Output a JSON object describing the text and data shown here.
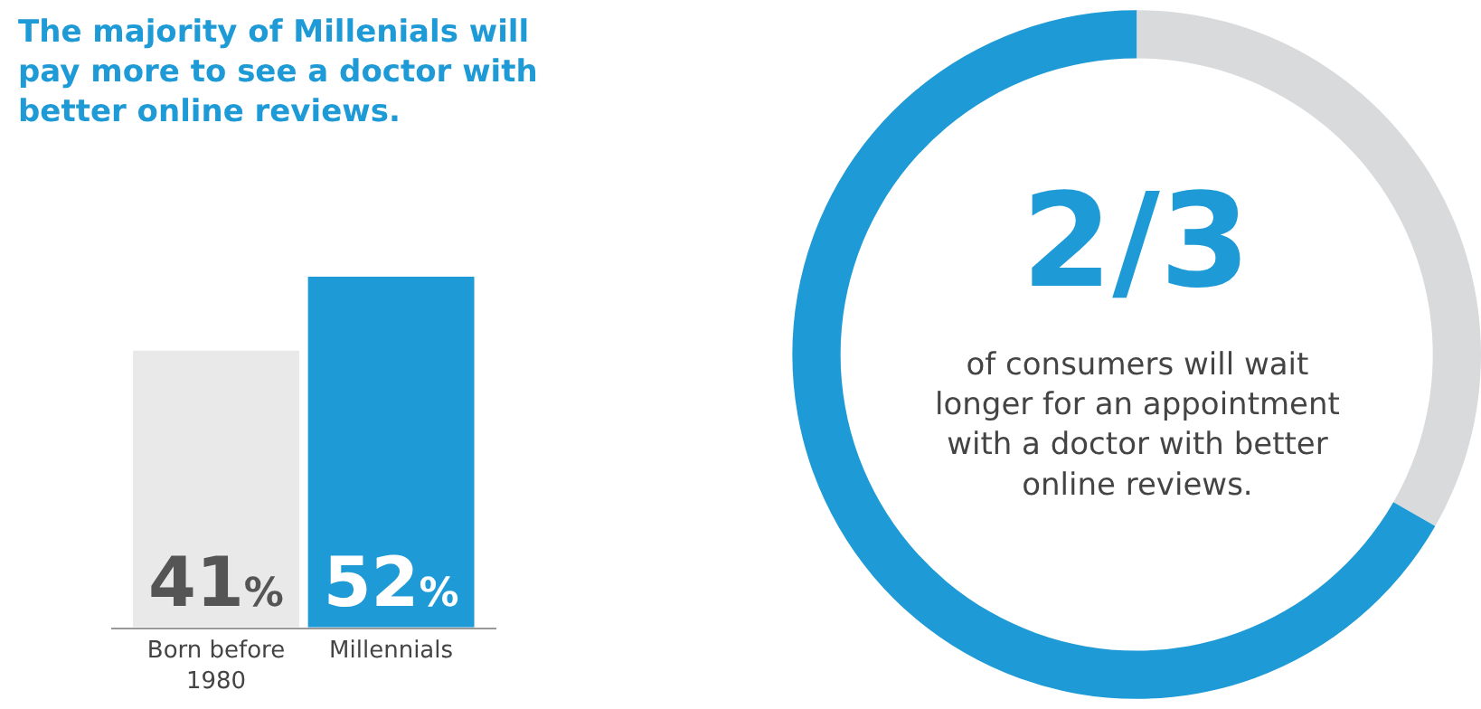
{
  "chart_data": [
    {
      "type": "bar",
      "title": "The majority of Millenials will pay more to see a doctor with better online reviews.",
      "categories": [
        "Born before 1980",
        "Millennials"
      ],
      "values": [
        41,
        52
      ],
      "colors": [
        "#e9e9e9",
        "#1e9ad6"
      ],
      "value_labels": [
        "41%",
        "52%"
      ],
      "legend": false
    },
    {
      "type": "donut",
      "categories": [
        null,
        null
      ],
      "values": [
        33.3,
        66.7
      ],
      "colors": [
        "#d9dadc",
        "#1e9ad6"
      ],
      "annotations": [
        "2/3",
        "of consumers will wait longer for an appointment with a doctor with better online reviews."
      ],
      "legend": false
    }
  ]
}
